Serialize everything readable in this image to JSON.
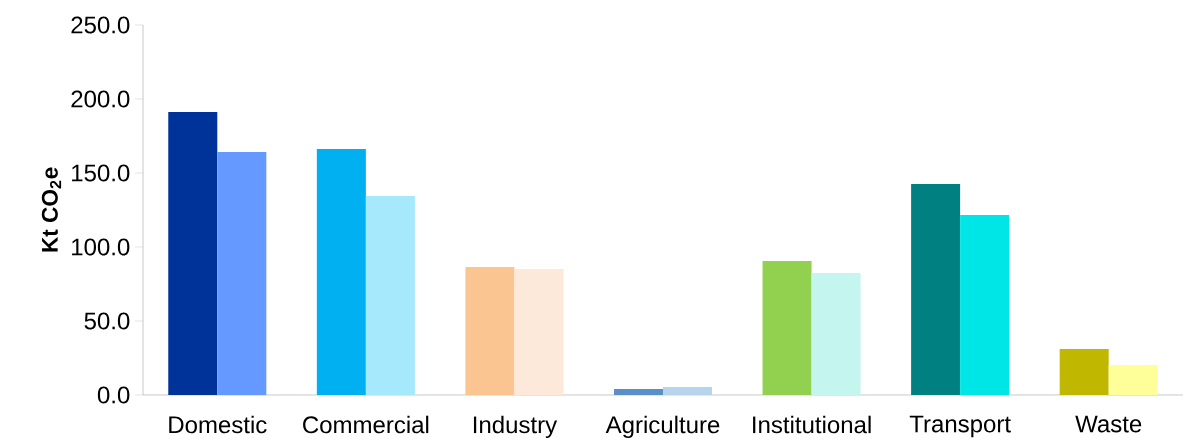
{
  "chart_data": {
    "type": "bar",
    "ylabel": "Kt CO$_{2}$e",
    "categories": [
      "Domestic",
      "Commercial",
      "Industry",
      "Agriculture",
      "Institutional",
      "Transport",
      "Waste"
    ],
    "series": [
      {
        "colors": [
          "#003399",
          "#00b0f0",
          "#fac590",
          "#5b8fc7",
          "#92d050",
          "#008080",
          "#c0b800"
        ],
        "values": [
          191.2,
          166.2,
          86.5,
          4.1,
          90.5,
          142.6,
          31.1
        ]
      },
      {
        "colors": [
          "#6699ff",
          "#a6e8fc",
          "#fde9d9",
          "#b8d4ec",
          "#c4f5ef",
          "#00e5e5",
          "#ffff99"
        ],
        "values": [
          164.2,
          134.5,
          85.1,
          5.4,
          82.4,
          121.6,
          20.3
        ]
      }
    ],
    "ylim": [
      0,
      250
    ],
    "yticks": [
      {
        "value": 0,
        "label": "0.0"
      },
      {
        "value": 50,
        "label": "50.0"
      },
      {
        "value": 100,
        "label": "100.0"
      },
      {
        "value": 150,
        "label": "150.0"
      },
      {
        "value": 200,
        "label": "200.0"
      },
      {
        "value": 250,
        "label": "250.0"
      }
    ],
    "grid": false
  }
}
